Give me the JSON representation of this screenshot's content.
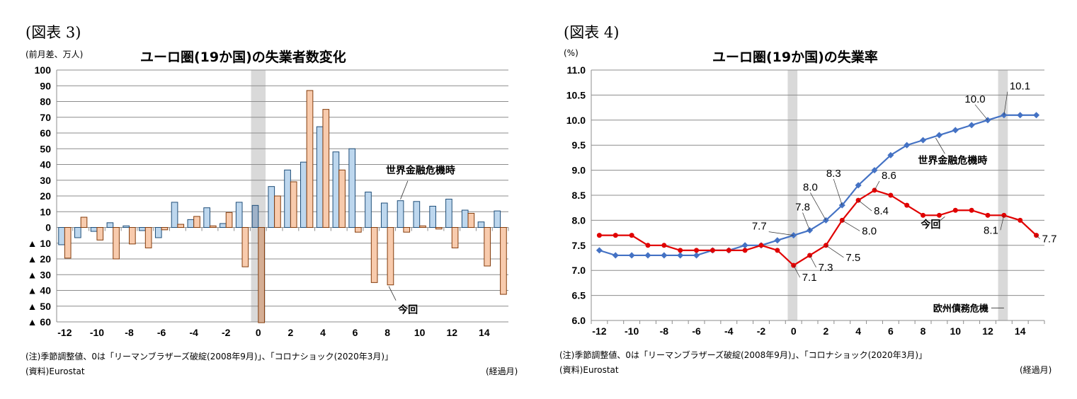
{
  "left": {
    "figure_label": "(図表 3)",
    "unit": "(前月差、万人)",
    "note": "(注)季節調整値、0は「リーマンブラザーズ破綻(2008年9月)」、「コロナショック(2020年3月)」",
    "source": "(資料)Eurostat",
    "x_unit": "(経過月)"
  },
  "right": {
    "figure_label": "(図表 4)",
    "unit": "(%)",
    "note": "(注)季節調整値、0は「リーマンブラザーズ破綻(2008年9月)」、「コロナショック(2020年3月)」",
    "source": "(資料)Eurostat",
    "x_unit": "(経過月)"
  },
  "chart_data": [
    {
      "type": "bar",
      "title": "ユーロ圏(19か国)の失業者数変化",
      "ylabel": "(前月差、万人)",
      "xlabel": "(経過月)",
      "ylim": [
        -60,
        100
      ],
      "yticks": [
        100,
        90,
        80,
        70,
        60,
        50,
        40,
        30,
        20,
        10,
        0,
        -10,
        -20,
        -30,
        -40,
        -50,
        -60
      ],
      "ytick_labels": [
        "100",
        "90",
        "80",
        "70",
        "60",
        "50",
        "40",
        "30",
        "20",
        "10",
        "0",
        "▲ 10",
        "▲ 20",
        "▲ 30",
        "▲ 40",
        "▲ 50",
        "▲ 60"
      ],
      "x": [
        -12,
        -11,
        -10,
        -9,
        -8,
        -7,
        -6,
        -5,
        -4,
        -3,
        -2,
        -1,
        0,
        1,
        2,
        3,
        4,
        5,
        6,
        7,
        8,
        9,
        10,
        11,
        12,
        13,
        14,
        15
      ],
      "xtick_labels": [
        "-12",
        "-10",
        "-8",
        "-6",
        "-4",
        "-2",
        "0",
        "2",
        "4",
        "6",
        "8",
        "10",
        "12",
        "14"
      ],
      "grid": true,
      "highlight_x": [
        0
      ],
      "series": [
        {
          "name": "世界金融危機時",
          "color": "#bdd7ee",
          "edge": "#1f4e79",
          "values": [
            -11,
            -6.5,
            -2.5,
            3,
            1,
            -2,
            -6.5,
            16,
            5,
            12.5,
            2.5,
            16,
            14,
            26,
            36.5,
            41.5,
            64,
            48,
            50,
            22.5,
            15.5,
            17,
            16.5,
            13.5,
            18,
            11,
            3.5,
            10.5
          ]
        },
        {
          "name": "今回",
          "color": "#f8cbad",
          "edge": "#843c0c",
          "values": [
            -19.5,
            6.5,
            -8,
            -20,
            -10.5,
            -13,
            -1.5,
            2,
            7,
            1,
            9.5,
            -25,
            -60.5,
            20,
            29,
            87,
            75,
            36.5,
            -3,
            -35,
            -36.5,
            -3,
            1,
            -1,
            -13,
            9,
            -24.5,
            -42.5
          ]
        }
      ],
      "annotations": [
        {
          "text": "世界金融危機時",
          "series": 0,
          "x": 9
        },
        {
          "text": "今回",
          "series": 1,
          "x": 8
        }
      ]
    },
    {
      "type": "line",
      "title": "ユーロ圏(19か国)の失業率",
      "ylabel": "(%)",
      "xlabel": "(経過月)",
      "ylim": [
        6.0,
        11.0
      ],
      "yticks": [
        11.0,
        10.5,
        10.0,
        9.5,
        9.0,
        8.5,
        8.0,
        7.5,
        7.0,
        6.5,
        6.0
      ],
      "ytick_labels": [
        "11.0",
        "10.5",
        "10.0",
        "9.5",
        "9.0",
        "8.5",
        "8.0",
        "7.5",
        "7.0",
        "6.5",
        "6.0"
      ],
      "x": [
        -12,
        -11,
        -10,
        -9,
        -8,
        -7,
        -6,
        -5,
        -4,
        -3,
        -2,
        -1,
        0,
        1,
        2,
        3,
        4,
        5,
        6,
        7,
        8,
        9,
        10,
        11,
        12,
        13,
        14,
        15
      ],
      "xtick_labels": [
        "-12",
        "-10",
        "-8",
        "-6",
        "-4",
        "-2",
        "0",
        "2",
        "4",
        "6",
        "8",
        "10",
        "12",
        "14"
      ],
      "grid": true,
      "highlight_x": [
        0,
        13
      ],
      "series": [
        {
          "name": "世界金融危機時",
          "color": "#4472c4",
          "values": [
            7.4,
            7.3,
            7.3,
            7.3,
            7.3,
            7.3,
            7.3,
            7.4,
            7.4,
            7.5,
            7.5,
            7.6,
            7.7,
            7.8,
            8.0,
            8.3,
            8.7,
            9.0,
            9.3,
            9.5,
            9.6,
            9.7,
            9.8,
            9.9,
            10.0,
            10.1,
            10.1,
            10.1
          ]
        },
        {
          "name": "今回",
          "color": "#e00000",
          "values": [
            7.7,
            7.7,
            7.7,
            7.5,
            7.5,
            7.4,
            7.4,
            7.4,
            7.4,
            7.4,
            7.5,
            7.4,
            7.1,
            7.3,
            7.5,
            8.0,
            8.4,
            8.6,
            8.5,
            8.3,
            8.1,
            8.1,
            8.2,
            8.2,
            8.1,
            8.1,
            8.0,
            7.7
          ]
        }
      ],
      "data_labels": [
        {
          "series": 0,
          "x": 0,
          "text": "7.7"
        },
        {
          "series": 0,
          "x": 1,
          "text": "7.8"
        },
        {
          "series": 0,
          "x": 2,
          "text": "8.0"
        },
        {
          "series": 0,
          "x": 3,
          "text": "8.3"
        },
        {
          "series": 0,
          "x": 12,
          "text": "10.0"
        },
        {
          "series": 0,
          "x": 13,
          "text": "10.1"
        },
        {
          "series": 1,
          "x": 0,
          "text": "7.1"
        },
        {
          "series": 1,
          "x": 1,
          "text": "7.3"
        },
        {
          "series": 1,
          "x": 2,
          "text": "7.5"
        },
        {
          "series": 1,
          "x": 3,
          "text": "8.0"
        },
        {
          "series": 1,
          "x": 4,
          "text": "8.4"
        },
        {
          "series": 1,
          "x": 5,
          "text": "8.6"
        },
        {
          "series": 1,
          "x": 13,
          "text": "8.1"
        },
        {
          "series": 1,
          "x": 15,
          "text": "7.7"
        }
      ],
      "annotations": [
        {
          "text": "世界金融危機時",
          "series": 0,
          "x": 9
        },
        {
          "text": "今回",
          "series": 1,
          "x": 9
        },
        {
          "text": "欧州債務危機",
          "x": 13
        }
      ]
    }
  ]
}
